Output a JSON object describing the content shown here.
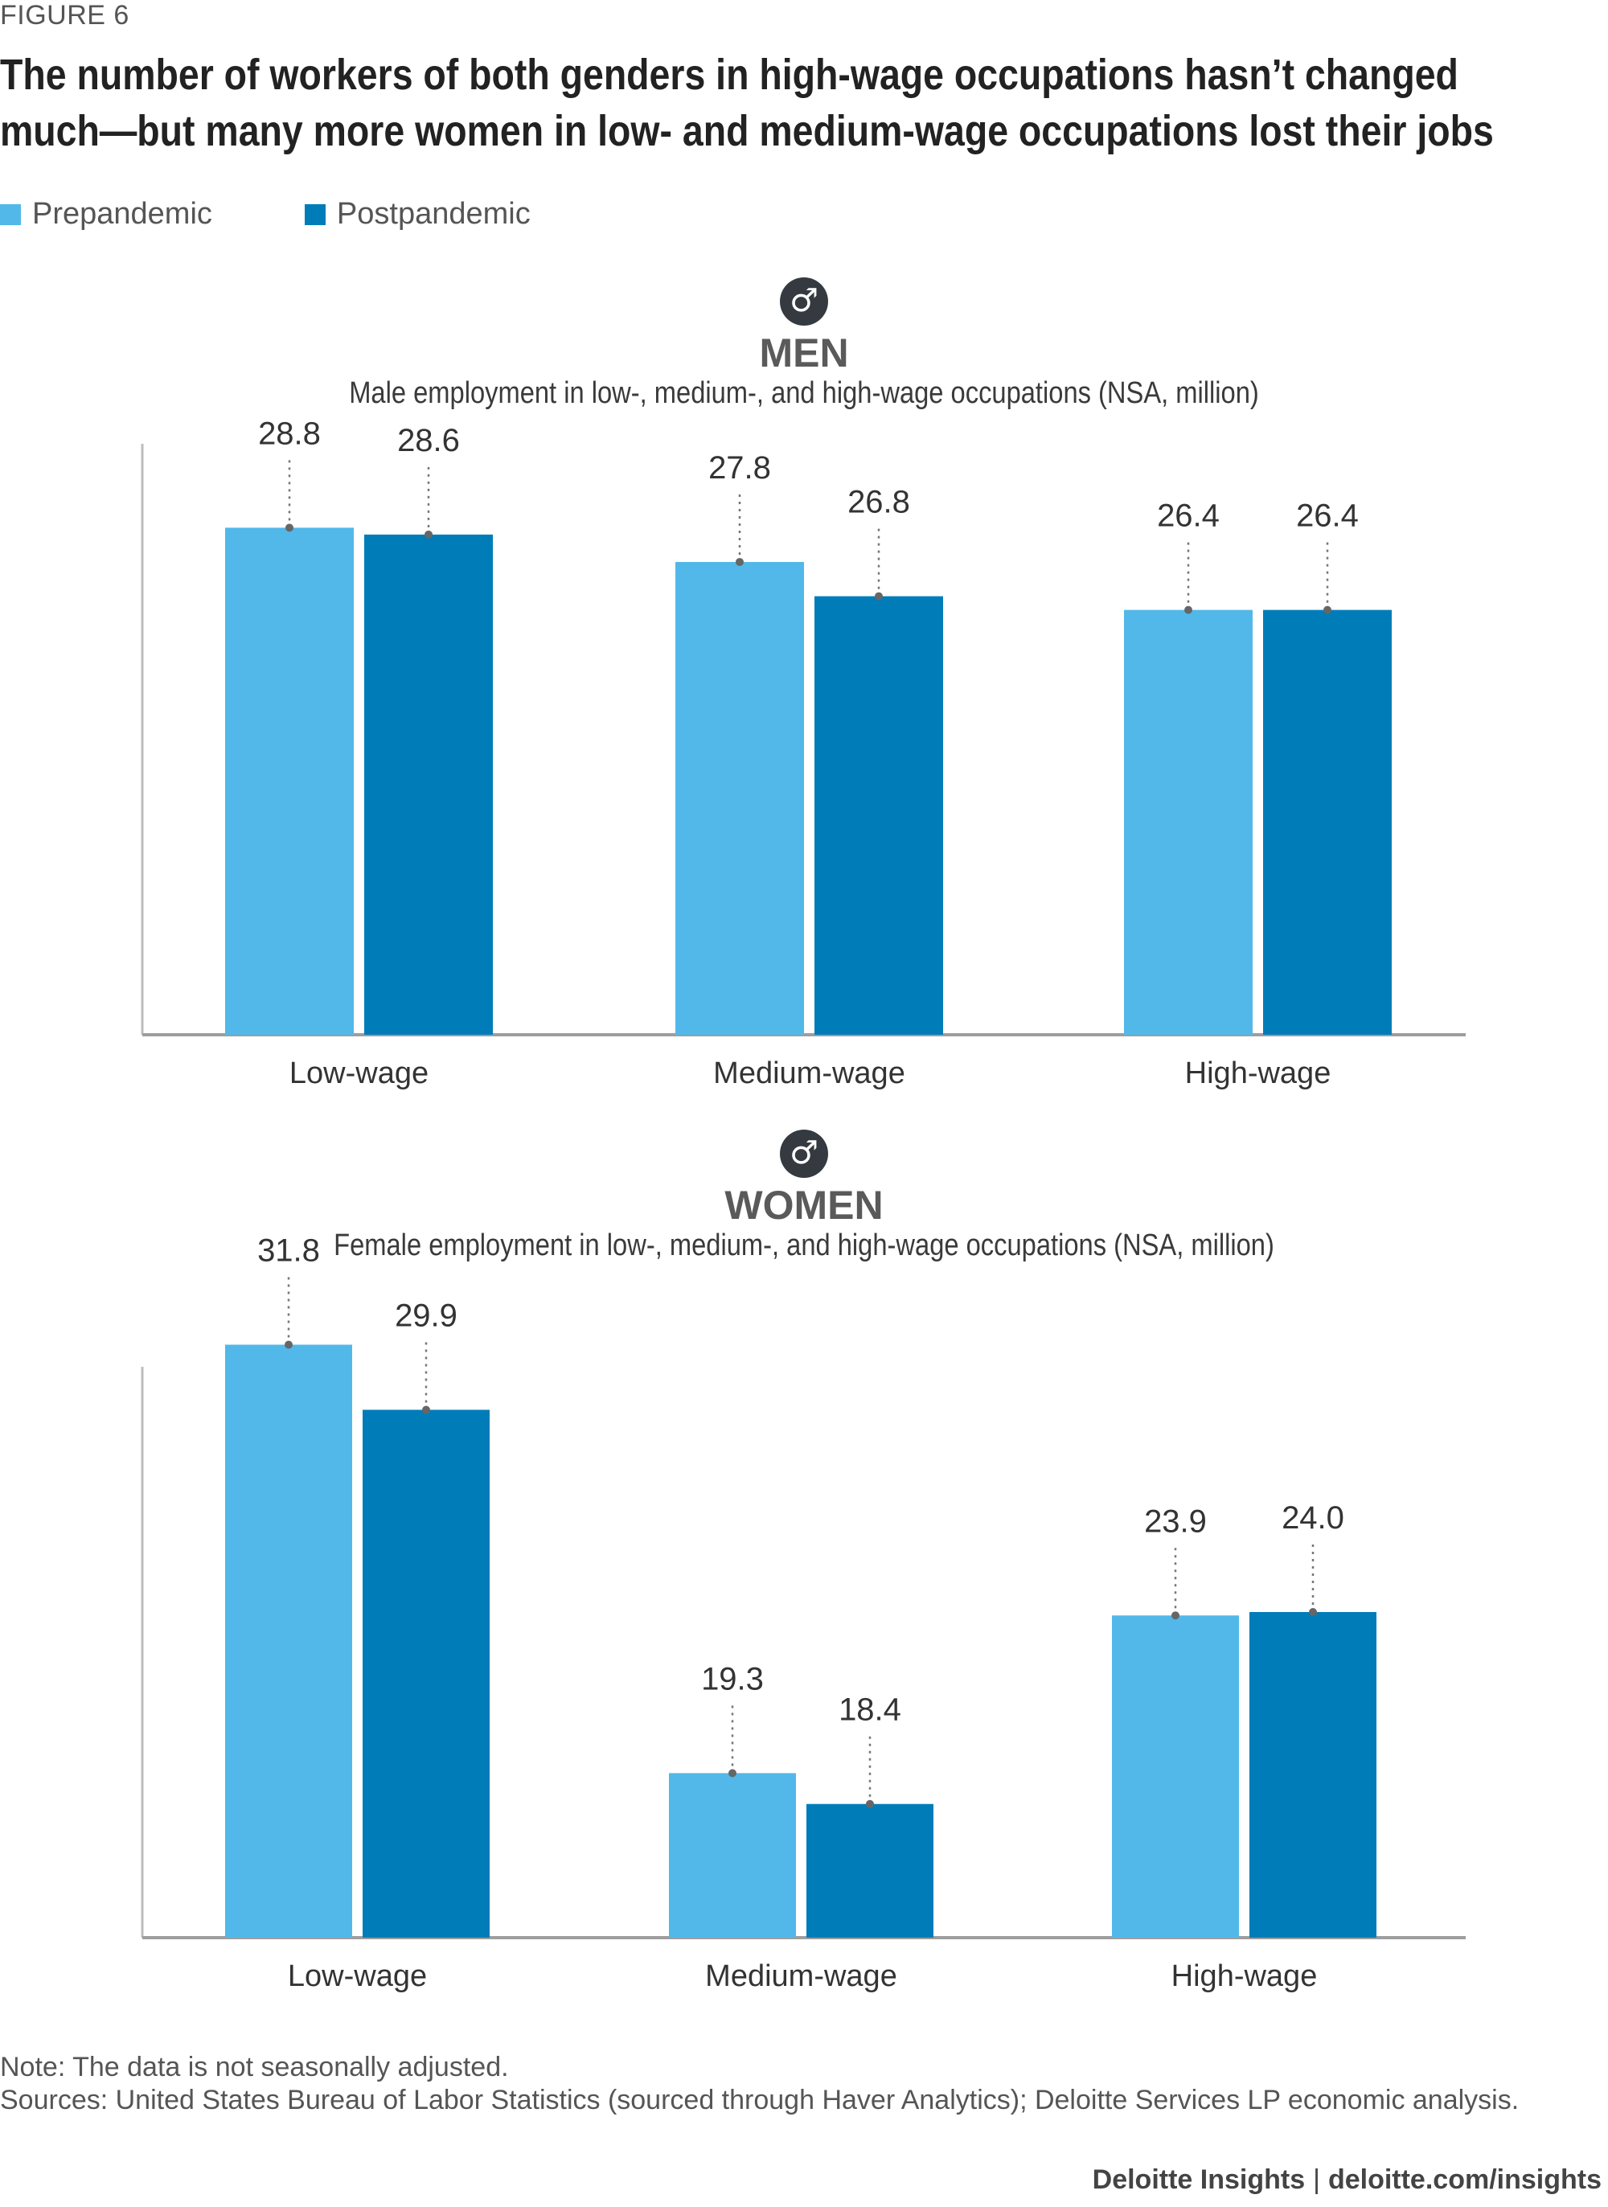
{
  "figure_label": "FIGURE 6",
  "title_line1": "The number of workers of both genders in high-wage occupations hasn’t changed",
  "title_line2": "much—but many more women in low- and medium-wage occupations lost their jobs",
  "legend": [
    {
      "label": "Prepandemic",
      "color": "#51b8e9"
    },
    {
      "label": "Postpandemic",
      "color": "#007cb9"
    }
  ],
  "panels": {
    "men": {
      "icon": "male-icon",
      "symbol": "♂",
      "title": "MEN",
      "subtitle": "Male employment in low-, medium-, and high-wage occupations (NSA, million)"
    },
    "women": {
      "icon": "female-icon",
      "symbol": "♂",
      "title": "WOMEN",
      "subtitle": "Female employment in low-, medium-, and high-wage occupations (NSA, million)"
    }
  },
  "chart_data": [
    {
      "type": "bar",
      "title": "MEN",
      "subtitle": "Male employment in low-, medium-, and high-wage occupations (NSA, million)",
      "categories": [
        "Low-wage",
        "Medium-wage",
        "High-wage"
      ],
      "series": [
        {
          "name": "Prepandemic",
          "values": [
            28.8,
            27.8,
            26.4
          ],
          "labels": [
            "28.8",
            "27.8",
            "26.4"
          ]
        },
        {
          "name": "Postpandemic",
          "values": [
            28.6,
            26.8,
            26.4
          ],
          "labels": [
            "28.6",
            "26.8",
            "26.4"
          ]
        }
      ],
      "ylim": [
        14.0,
        32.0
      ],
      "grid": false
    },
    {
      "type": "bar",
      "title": "WOMEN",
      "subtitle": "Female employment in low-, medium-, and high-wage occupations (NSA, million)",
      "categories": [
        "Low-wage",
        "Medium-wage",
        "High-wage"
      ],
      "series": [
        {
          "name": "Prepandemic",
          "values": [
            31.8,
            19.3,
            23.9
          ],
          "labels": [
            "31.8",
            "19.3",
            "23.9"
          ]
        },
        {
          "name": "Postpandemic",
          "values": [
            29.9,
            18.4,
            24.0
          ],
          "labels": [
            "29.9",
            "18.4",
            "24.0"
          ]
        }
      ],
      "ylim": [
        14.5,
        33.5
      ],
      "grid": false
    }
  ],
  "note": "Note: The data is not seasonally adjusted.",
  "sources": "Sources: United States Bureau of Labor Statistics (sourced through Haver Analytics); Deloitte Services LP economic analysis.",
  "footer": {
    "brand": "Deloitte Insights",
    "separator": "|",
    "url": "deloitte.com/insights"
  }
}
